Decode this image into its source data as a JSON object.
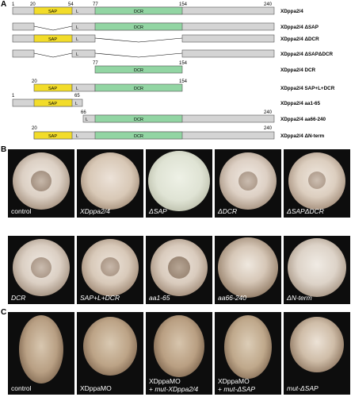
{
  "panels": {
    "a": "A",
    "b": "B",
    "c": "C"
  },
  "diagram": {
    "ticks_top": [
      "1",
      "20",
      "54",
      "77",
      "154",
      "240"
    ],
    "labels": {
      "sap": "SAP",
      "l": "L",
      "dcr": "DCR"
    },
    "rows": [
      {
        "name": "XDppa2/4"
      },
      {
        "name": "XDppa2/4 ΔSAP"
      },
      {
        "name": "XDppa2/4 ΔDCR"
      },
      {
        "name": "XDppa2/4 ΔSAPΔDCR"
      },
      {
        "name": "XDppa2/4 DCR",
        "ticks": [
          "77",
          "154"
        ]
      },
      {
        "name": "XDppa2/4 SAP+L+DCR",
        "ticks": [
          "20",
          "154"
        ]
      },
      {
        "name": "XDppa2/4 aa1-65",
        "ticks": [
          "1",
          "65"
        ]
      },
      {
        "name": "XDppa2/4 aa66-240",
        "ticks": [
          "66",
          "240"
        ]
      },
      {
        "name": "XDppa2/4 ΔN-term",
        "ticks": [
          "20",
          "240"
        ]
      }
    ]
  },
  "photos_b": [
    {
      "caption": "control",
      "italic": false
    },
    {
      "caption": "XDppa2/4",
      "italic": true
    },
    {
      "caption": "ΔSAP",
      "italic": true
    },
    {
      "caption": "ΔDCR",
      "italic": true
    },
    {
      "caption": "ΔSAPΔDCR",
      "italic": true
    },
    {
      "caption": "DCR",
      "italic": true
    },
    {
      "caption": "SAP+L+DCR",
      "italic": true
    },
    {
      "caption": "aa1-65",
      "italic": true
    },
    {
      "caption": "aa66-240",
      "italic": true
    },
    {
      "caption": "ΔN-term",
      "italic": true
    }
  ],
  "photos_c": [
    {
      "caption": "control"
    },
    {
      "caption": "XDppaMO"
    },
    {
      "line1": "XDppaMO",
      "line2_prefix": "+ ",
      "line2_italic": "mut-XDppa2/4"
    },
    {
      "line1": "XDppaMO",
      "line2_prefix": "+ ",
      "line2_italic": "mut-ΔSAP"
    },
    {
      "caption_italic": "mut-ΔSAP"
    }
  ],
  "colors": {
    "sap": "#f2dc2a",
    "dcr": "#92d5a3",
    "bar": "#d4d4d4",
    "photo_bg": "#0d0d0d"
  }
}
